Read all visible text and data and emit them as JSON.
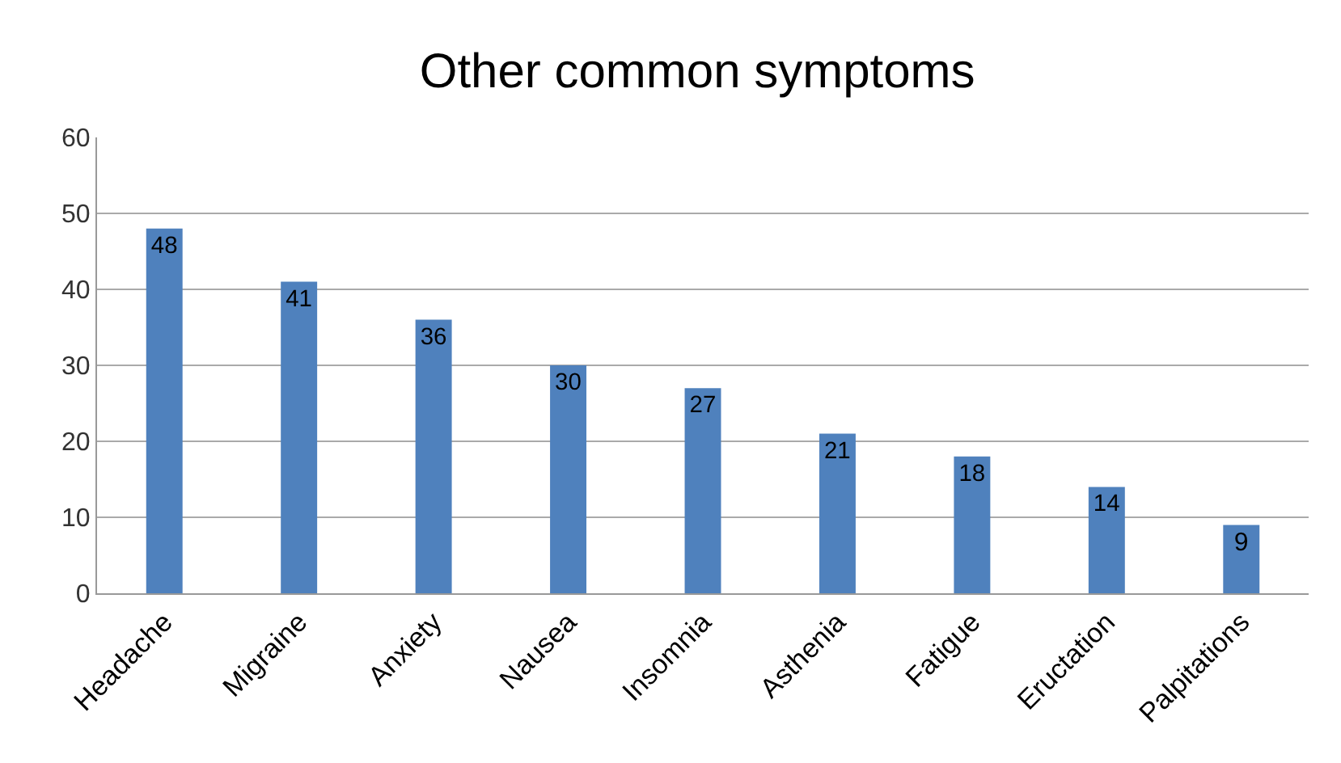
{
  "chart_data": {
    "type": "bar",
    "title": "Other common symptoms",
    "categories": [
      "Headache",
      "Migraine",
      "Anxiety",
      "Nausea",
      "Insomnia",
      "Asthenia",
      "Fatigue",
      "Eructation",
      "Palpitations"
    ],
    "values": [
      48,
      41,
      36,
      30,
      27,
      21,
      18,
      14,
      9
    ],
    "color": "#4f81bd",
    "ylim": [
      0,
      60
    ],
    "yticks": [
      0,
      10,
      20,
      30,
      40,
      50,
      60
    ],
    "grid": "y",
    "data_labels": true,
    "legend": false
  }
}
